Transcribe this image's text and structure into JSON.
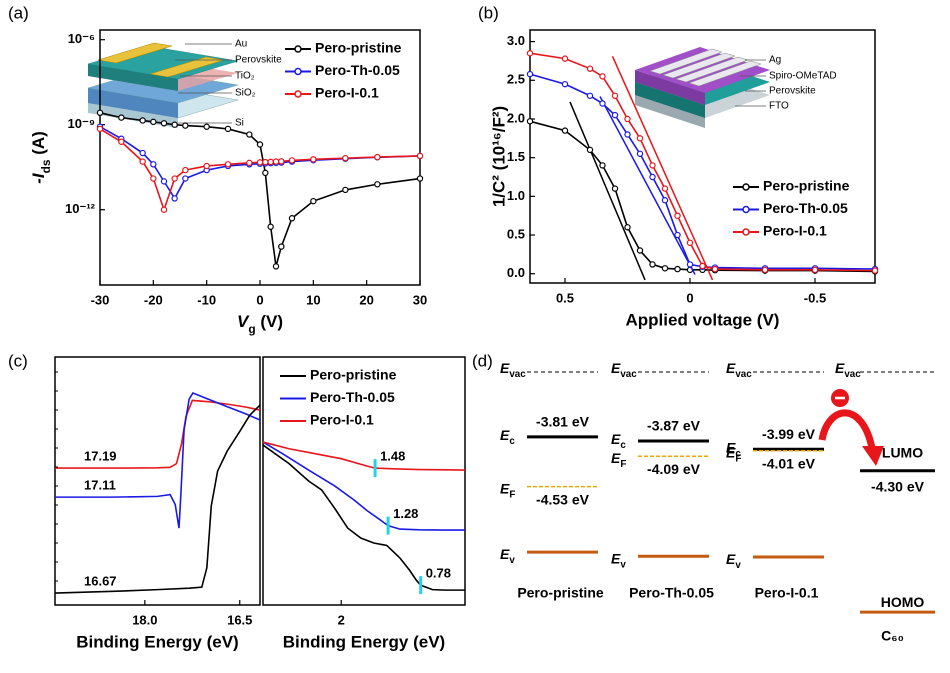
{
  "chart_data": [
    {
      "type": "line",
      "label": "(a)",
      "yscale": "log",
      "marker": "circle",
      "legend": "upper right",
      "xlabel": [
        "V",
        "g",
        " (V)"
      ],
      "ylabel": [
        "-I",
        "ds",
        " (A)"
      ],
      "xlim": [
        -30,
        30
      ],
      "xticks": [
        -30,
        -20,
        -10,
        0,
        10,
        20,
        30
      ],
      "ylim": [
        2.2e-15,
        2.2e-06
      ],
      "yticks": [
        {
          "value": 1e-06,
          "label": "10⁻⁶"
        },
        {
          "value": 1e-09,
          "label": "10⁻⁹"
        },
        {
          "value": 1e-12,
          "label": "10⁻¹²"
        }
      ],
      "inset_labels": [
        "Au",
        "Perovskite",
        "TiO₂",
        "SiO₂",
        "Si"
      ],
      "x": [
        -30,
        -26,
        -22,
        -20,
        -18,
        -16,
        -14,
        -10,
        -6,
        -2,
        0,
        1,
        2,
        3,
        4,
        6,
        10,
        16,
        22,
        30
      ],
      "series": [
        {
          "name": "Pero-pristine",
          "color": "#000000",
          "values": [
            2.63e-09,
            1.78e-09,
            1.41e-09,
            1.26e-09,
            1.12e-09,
            1e-09,
            9.3e-10,
            8.5e-10,
            7.1e-10,
            4.5e-10,
            2e-10,
            2e-11,
            2.5e-13,
            1e-14,
            5e-14,
            5e-13,
            2e-12,
            5e-12,
            7.9e-12,
            1.26e-11
          ]
        },
        {
          "name": "Pero-Th-0.05",
          "color": "#1a1ae6",
          "values": [
            8.5e-10,
            3.2e-10,
            1e-10,
            4e-11,
            1e-11,
            2.5e-12,
            1.26e-11,
            2.5e-11,
            3.5e-11,
            4e-11,
            4.2e-11,
            4.3e-11,
            4.4e-11,
            4.5e-11,
            4.6e-11,
            5e-11,
            5.6e-11,
            6.3e-11,
            7.1e-11,
            7.9e-11
          ]
        },
        {
          "name": "Pero-I-0.1",
          "color": "#e8161b",
          "values": [
            7.1e-10,
            2.5e-10,
            5e-11,
            1.26e-11,
            1e-12,
            1.26e-11,
            2.5e-11,
            3.5e-11,
            4e-11,
            4.5e-11,
            4.7e-11,
            4.8e-11,
            4.9e-11,
            5e-11,
            5.1e-11,
            5.5e-11,
            6e-11,
            6.6e-11,
            7.2e-11,
            7.9e-11
          ]
        }
      ]
    },
    {
      "type": "line",
      "label": "(b)",
      "marker": "circle",
      "legend": "lower right",
      "xlabel": "Applied voltage (V)",
      "ylabel": "1/C² (10¹⁶/F²)",
      "xlim": [
        0.64,
        -0.74
      ],
      "xticks": [
        0.5,
        0,
        -0.5
      ],
      "ylim": [
        -0.12,
        3.15
      ],
      "yticks": [
        {
          "value": 0,
          "label": "0.0"
        },
        0.5,
        {
          "value": 1,
          "label": "1.0"
        },
        1.5,
        {
          "value": 2,
          "label": "2.0"
        },
        2.5,
        {
          "value": 3,
          "label": "3.0"
        }
      ],
      "inset_labels": [
        "Ag",
        "Spiro-OMeTAD",
        "Perovskite",
        "FTO"
      ],
      "x": [
        0.64,
        0.5,
        0.4,
        0.35,
        0.3,
        0.25,
        0.2,
        0.15,
        0.1,
        0.05,
        0,
        -0.05,
        -0.1,
        -0.3,
        -0.5,
        -0.74
      ],
      "series": [
        {
          "name": "Pero-pristine",
          "color": "#000000",
          "values": [
            1.97,
            1.85,
            1.6,
            1.4,
            1.1,
            0.6,
            0.3,
            0.12,
            0.07,
            0.06,
            0.05,
            0.05,
            0.045,
            0.04,
            0.04,
            0.03
          ],
          "fit": {
            "x": [
              0.48,
              0.18
            ],
            "values": [
              2.22,
              -0.08
            ]
          }
        },
        {
          "name": "Pero-Th-0.05",
          "color": "#1a1ae6",
          "values": [
            2.58,
            2.45,
            2.3,
            2.2,
            2.05,
            1.8,
            1.55,
            1.25,
            0.95,
            0.5,
            0.12,
            0.09,
            0.08,
            0.07,
            0.07,
            0.06
          ],
          "fit": {
            "x": [
              0.36,
              -0.02
            ],
            "values": [
              2.29,
              -0.01
            ]
          }
        },
        {
          "name": "Pero-I-0.1",
          "color": "#e8161b",
          "values": [
            2.85,
            2.78,
            2.65,
            2.55,
            2.3,
            2.0,
            1.75,
            1.4,
            1.1,
            0.75,
            0.4,
            0.1,
            0.06,
            0.05,
            0.05,
            0.04
          ],
          "fit": {
            "x": [
              0.31,
              -0.09
            ],
            "values": [
              2.81,
              -0.08
            ]
          }
        }
      ]
    },
    {
      "type": "line",
      "label": "(c)",
      "xlabel": "Binding Energy (eV)",
      "xlim": [
        19.42,
        16.18
      ],
      "xticks": [
        {
          "value": 18,
          "label": "18.0"
        },
        16.5
      ],
      "ylim": [
        0,
        100
      ],
      "series": [
        {
          "name": "Pero-I-0.1",
          "color": "#e8161b",
          "edge": 17.19,
          "x": [
            19.42,
            18.5,
            17.8,
            17.6,
            17.5,
            17.42,
            17.35,
            17.25,
            17.0,
            16.7,
            16.4,
            16.18
          ],
          "values": [
            55.2,
            55.2,
            55.3,
            55.5,
            57,
            65,
            76,
            82.5,
            82,
            81,
            79.8,
            78.6
          ]
        },
        {
          "name": "Pero-Th-0.05",
          "color": "#1a1ae6",
          "edge": 17.11,
          "x": [
            19.42,
            18.5,
            17.8,
            17.6,
            17.52,
            17.46,
            17.43,
            17.38,
            17.3,
            17.24,
            17.0,
            16.7,
            16.4,
            16.18
          ],
          "values": [
            43.5,
            43.5,
            43.8,
            44.5,
            40.5,
            31,
            45,
            70.6,
            83,
            85.5,
            83,
            80,
            77,
            74.6
          ]
        },
        {
          "name": "Pero-pristine",
          "color": "#000000",
          "edge": 16.67,
          "x": [
            19.42,
            18.5,
            17.8,
            17.3,
            17.1,
            17.02,
            16.95,
            16.85,
            16.7,
            16.5,
            16.34,
            16.18
          ],
          "values": [
            4.8,
            5.5,
            6.2,
            6.8,
            7.2,
            15,
            40,
            54,
            62,
            70,
            76.6,
            80.6
          ]
        }
      ]
    },
    {
      "type": "line",
      "xlabel": "Binding Energy (eV)",
      "legend": "upper right",
      "legend_text": "colored",
      "edge_marker_color": "#22d3e6",
      "xlim": [
        3.2,
        0.1
      ],
      "xticks": [
        2
      ],
      "ylim": [
        0,
        100
      ],
      "series": [
        {
          "name": "Pero-pristine",
          "color": "#000000",
          "edge": 0.78,
          "x": [
            3.2,
            2.8,
            2.5,
            2.3,
            2.1,
            1.9,
            1.7,
            1.5,
            1.3,
            1.1,
            0.95,
            0.85,
            0.78,
            0.6,
            0.4,
            0.1
          ],
          "values": [
            64.5,
            57,
            50,
            46.4,
            39,
            31,
            27,
            25,
            24,
            19,
            14,
            10.1,
            8,
            6.2,
            6,
            6
          ]
        },
        {
          "name": "Pero-Th-0.05",
          "color": "#1a1ae6",
          "edge": 1.28,
          "x": [
            3.2,
            2.9,
            2.5,
            2.1,
            1.8,
            1.6,
            1.4,
            1.28,
            1.1,
            0.8,
            0.4,
            0.1
          ],
          "values": [
            65.7,
            61,
            54.4,
            48,
            42.3,
            38,
            34.3,
            32,
            30.6,
            30.3,
            30.2,
            30.2
          ]
        },
        {
          "name": "Pero-I-0.1",
          "color": "#e8161b",
          "edge": 1.48,
          "x": [
            3.2,
            2.8,
            2.4,
            2.0,
            1.6,
            1.48,
            1.2,
            0.8,
            0.4,
            0.1
          ],
          "values": [
            65.7,
            63,
            61,
            59,
            56,
            55.2,
            54.9,
            54.6,
            54.5,
            54.4
          ]
        }
      ]
    },
    {
      "type": "energy-levels",
      "label": "(d)",
      "level_labels": {
        "evac": [
          "E",
          "vac"
        ],
        "ec": [
          "E",
          "c"
        ],
        "ef": [
          "E",
          "F"
        ],
        "ev": [
          "E",
          "v"
        ]
      },
      "columns": [
        {
          "name": "Pero-pristine",
          "ec": -3.81,
          "ec_label": "-3.81 eV",
          "ef": -4.53,
          "ef_label": "-4.53 eV",
          "ev": -5.48
        },
        {
          "name": "Pero-Th-0.05",
          "ec": -3.87,
          "ec_label": "-3.87 eV",
          "ef": -4.09,
          "ef_label": "-4.09 eV",
          "ev": -5.54
        },
        {
          "name": "Pero-I-0.1",
          "ec": -3.99,
          "ec_label": "-3.99 eV",
          "ef": -4.01,
          "ef_label": "-4.01 eV",
          "ev": -5.55
        }
      ],
      "acceptor": {
        "name": "C₆₀",
        "lumo_name": "LUMO",
        "lumo": -4.3,
        "lumo_label": "-4.30 eV",
        "homo_name": "HOMO",
        "homo": -6.35
      }
    }
  ]
}
